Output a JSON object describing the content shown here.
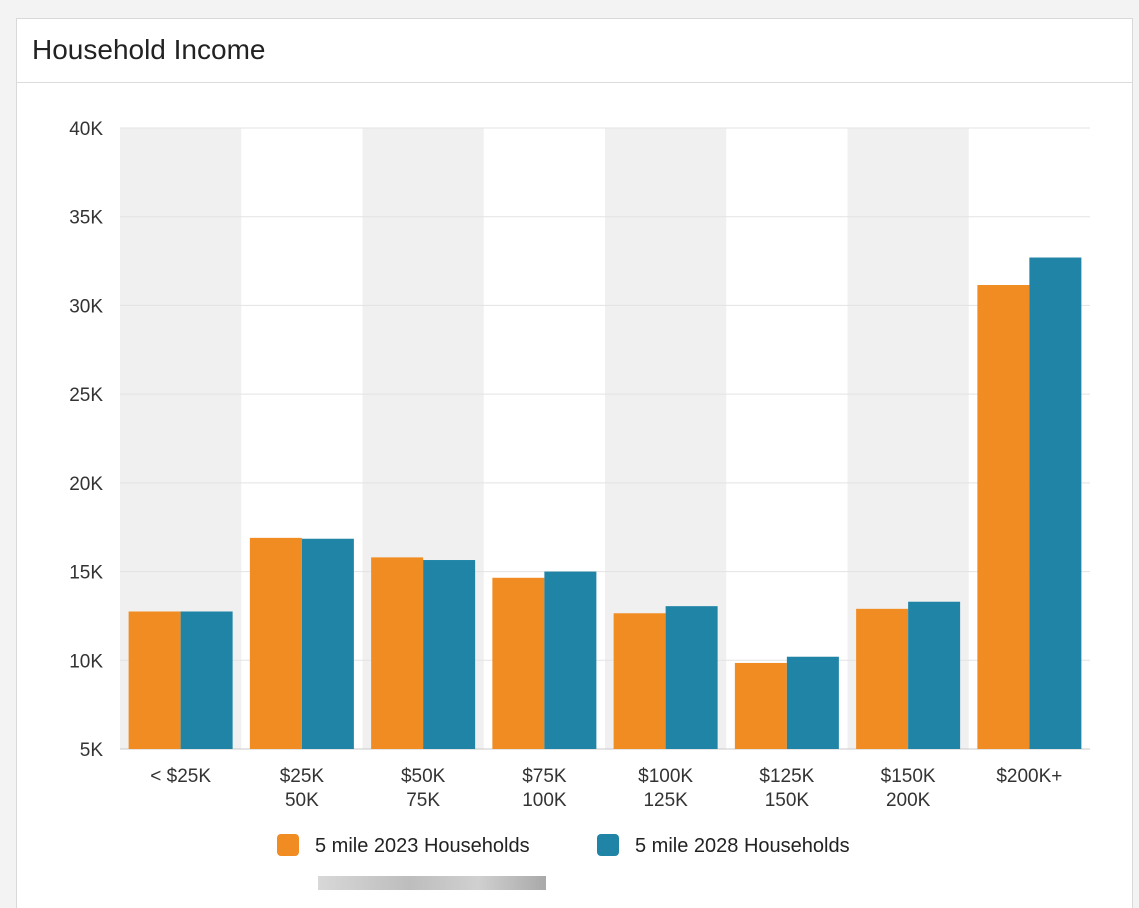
{
  "panel": {
    "title": "Household Income"
  },
  "chart_data": {
    "type": "bar",
    "title": "Household Income",
    "xlabel": "",
    "ylabel": "",
    "ylim": [
      5000,
      40000
    ],
    "yticks": [
      5000,
      10000,
      15000,
      20000,
      25000,
      30000,
      35000,
      40000
    ],
    "ytick_labels": [
      "5K",
      "10K",
      "15K",
      "20K",
      "25K",
      "30K",
      "35K",
      "40K"
    ],
    "categories": [
      [
        "< $25K"
      ],
      [
        "$25K",
        "50K"
      ],
      [
        "$50K",
        "75K"
      ],
      [
        "$75K",
        "100K"
      ],
      [
        "$100K",
        "125K"
      ],
      [
        "$125K",
        "150K"
      ],
      [
        "$150K",
        "200K"
      ],
      [
        "$200K+"
      ]
    ],
    "series": [
      {
        "name": "5 mile 2023 Households",
        "color": "#F08C22",
        "values": [
          12750,
          16900,
          15800,
          14650,
          12650,
          9850,
          12900,
          31150
        ]
      },
      {
        "name": "5 mile 2028 Households",
        "color": "#1F84A6",
        "values": [
          12750,
          16850,
          15650,
          15000,
          13050,
          10200,
          13300,
          32700
        ]
      }
    ],
    "grid": true,
    "alternating_band_color": "#f0f0f0",
    "legend_position": "bottom-center"
  }
}
